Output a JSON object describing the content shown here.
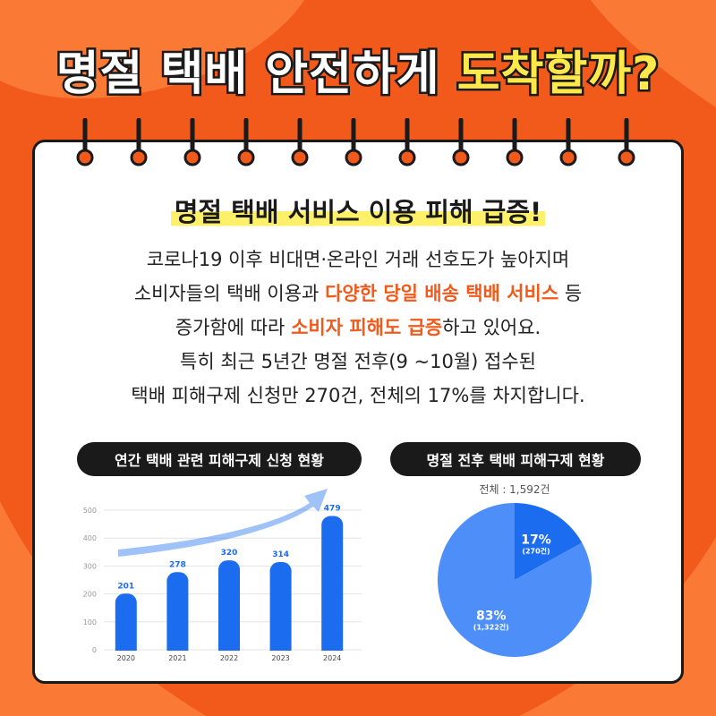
{
  "title": {
    "part1": "명절 택배 안전하게 ",
    "part2": "도착할까?"
  },
  "headline": "명절 택배 서비스 이용 피해 급증!",
  "body": {
    "line1": "코로나19 이후 비대면·온라인 거래 선호도가 높아지며",
    "line2a": "소비자들의 택배 이용과 ",
    "line2b": "다양한 당일 배송 택배 서비스",
    "line2c": " 등",
    "line3a": "증가함에 따라  ",
    "line3b": "소비자 피해도 급증",
    "line3c": "하고 있어요.",
    "line4": "특히 최근 5년간 명절 전후(9 ~10월) 접수된",
    "line5": "택배 피해구제 신청만 270건, 전체의 17%를 차지합니다."
  },
  "colors": {
    "orange": "#f25a1c",
    "orange_light": "#fa7a35",
    "blue": "#1c6cf0",
    "blue_light": "#4d8ef8",
    "yellow": "#ffe84a",
    "dark": "#1a1a1a"
  },
  "chart_data": [
    {
      "type": "bar",
      "title": "연간 택배 관련 피해구제 신청 현황",
      "categories": [
        "2020",
        "2021",
        "2022",
        "2023",
        "2024"
      ],
      "values": [
        201,
        278,
        320,
        314,
        479
      ],
      "y_ticks": [
        "0",
        "100",
        "200",
        "300",
        "400",
        "500"
      ],
      "ylim": [
        0,
        500
      ],
      "grid": true,
      "trend_arrow": true
    },
    {
      "type": "pie",
      "title": "명절 전후 택배 피해구제 현황",
      "total_label": "전체 : 1,592건",
      "slices": [
        {
          "percent_label": "17%",
          "count_label": "(270건)",
          "value": 270
        },
        {
          "percent_label": "83%",
          "count_label": "(1,322건)",
          "value": 1322
        }
      ]
    }
  ]
}
